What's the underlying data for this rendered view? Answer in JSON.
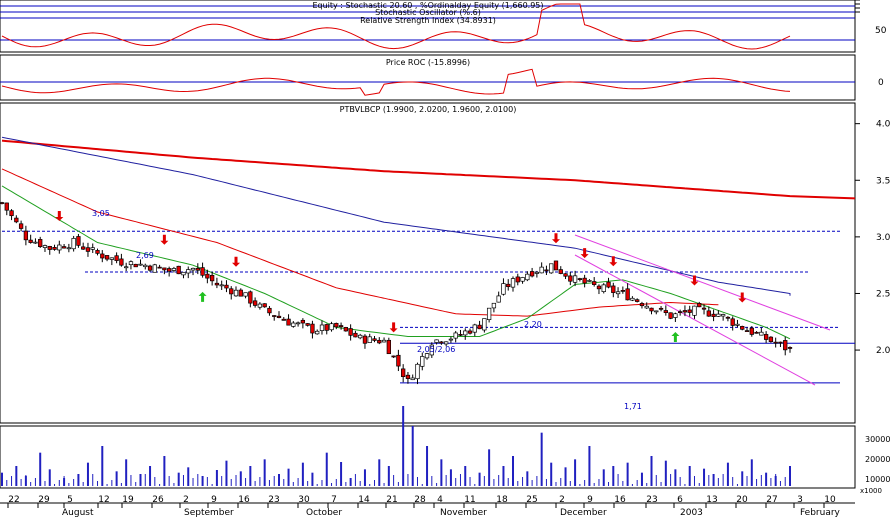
{
  "colors": {
    "background": "#ffffff",
    "frame": "#000000",
    "up_candle": "#ffffff",
    "down_candle": "#e00000",
    "osc_line": "#e00000",
    "ref_line": "#0000c0",
    "ma_red": "#e00000",
    "ma_blue": "#2020a0",
    "ma_green": "#20a020",
    "channel": "#e040e0",
    "level_dash": "#0000c0",
    "volume": "#2020c0",
    "buy_arrow": "#20c020",
    "sell_arrow": "#e00000"
  },
  "panels": {
    "oscillator_title": "Stochastic Oscillator (%.6)",
    "rsi_title": "Relative Strength Index (34.8931)",
    "oscillator_top_label": "Equity : Stochastic 20.60 , %Ordinalday Equity (1,660.95)",
    "oscillator_axis": [
      "50"
    ],
    "roc_title": "Price ROC (-15.8996)",
    "roc_axis": [
      "0"
    ],
    "price_title": "PTBVLBCP (1.9900, 2.0200, 1.9600, 2.0100)",
    "price_axis": [
      "4.0",
      "3.5",
      "3.0",
      "2.5",
      "2.0"
    ],
    "volume_axis": [
      "30000",
      "20000",
      "10000"
    ],
    "volume_unit": "x1000"
  },
  "annotations": {
    "levels": [
      "3,05",
      "2,69",
      "2,20",
      "2,05/2,06",
      "1,71"
    ]
  },
  "x_axis": {
    "days": [
      "22",
      "29",
      "5",
      "12",
      "19",
      "26",
      "2",
      "9",
      "16",
      "23",
      "30",
      "7",
      "14",
      "21",
      "28",
      "4",
      "11",
      "18",
      "25",
      "2",
      "9",
      "16",
      "23",
      "6",
      "13",
      "20",
      "27",
      "3",
      "10"
    ],
    "months": [
      "August",
      "September",
      "October",
      "November",
      "December",
      "2003",
      "February"
    ]
  },
  "chart_data": {
    "type": "candlestick",
    "title": "PTBVLBCP (1.9900, 2.0200, 1.9600, 2.0100)",
    "last_bar": {
      "open": 1.99,
      "high": 2.02,
      "low": 1.96,
      "close": 2.01
    },
    "ylim": [
      1.4,
      4.05
    ],
    "price_levels": [
      3.05,
      2.69,
      2.2,
      2.06,
      1.71
    ],
    "close_points": [
      [
        0,
        3.3
      ],
      [
        5,
        3.0
      ],
      [
        10,
        2.9
      ],
      [
        15,
        2.95
      ],
      [
        20,
        2.85
      ],
      [
        25,
        2.78
      ],
      [
        30,
        2.75
      ],
      [
        35,
        2.7
      ],
      [
        40,
        2.72
      ],
      [
        45,
        2.58
      ],
      [
        50,
        2.5
      ],
      [
        55,
        2.35
      ],
      [
        60,
        2.25
      ],
      [
        65,
        2.18
      ],
      [
        70,
        2.2
      ],
      [
        75,
        2.1
      ],
      [
        80,
        2.08
      ],
      [
        85,
        1.72
      ],
      [
        90,
        2.08
      ],
      [
        95,
        2.12
      ],
      [
        100,
        2.22
      ],
      [
        105,
        2.55
      ],
      [
        110,
        2.68
      ],
      [
        115,
        2.75
      ],
      [
        120,
        2.62
      ],
      [
        125,
        2.55
      ],
      [
        130,
        2.5
      ],
      [
        135,
        2.4
      ],
      [
        140,
        2.3
      ],
      [
        145,
        2.35
      ],
      [
        150,
        2.32
      ],
      [
        155,
        2.2
      ],
      [
        160,
        2.1
      ],
      [
        165,
        2.0
      ]
    ],
    "moving_averages": [
      {
        "name": "",
        "color": "#e00000",
        "points": [
          [
            0,
            3.85
          ],
          [
            40,
            3.7
          ],
          [
            80,
            3.58
          ],
          [
            120,
            3.5
          ],
          [
            165,
            3.36
          ]
        ]
      },
      {
        "name": "",
        "color": "#2020a0",
        "points": [
          [
            0,
            3.88
          ],
          [
            40,
            3.55
          ],
          [
            80,
            3.13
          ],
          [
            120,
            2.9
          ],
          [
            135,
            2.75
          ],
          [
            150,
            2.6
          ],
          [
            165,
            2.5
          ]
        ]
      },
      {
        "name": "",
        "color": "#e00000",
        "points": [
          [
            0,
            3.6
          ],
          [
            20,
            3.22
          ],
          [
            45,
            2.95
          ],
          [
            70,
            2.55
          ],
          [
            95,
            2.32
          ],
          [
            110,
            2.3
          ],
          [
            125,
            2.38
          ],
          [
            140,
            2.42
          ],
          [
            150,
            2.4
          ]
        ]
      },
      {
        "name": "",
        "color": "#20a020",
        "points": [
          [
            0,
            3.45
          ],
          [
            20,
            2.95
          ],
          [
            40,
            2.75
          ],
          [
            55,
            2.5
          ],
          [
            70,
            2.2
          ],
          [
            85,
            2.12
          ],
          [
            100,
            2.12
          ],
          [
            110,
            2.28
          ],
          [
            120,
            2.58
          ],
          [
            130,
            2.62
          ],
          [
            140,
            2.5
          ],
          [
            150,
            2.35
          ],
          [
            160,
            2.2
          ],
          [
            165,
            2.1
          ]
        ]
      }
    ],
    "volume": [
      20,
      30,
      15,
      50,
      25,
      12,
      18,
      35,
      60,
      22,
      40,
      18,
      30,
      45,
      20,
      28,
      15,
      24,
      38,
      22,
      30,
      40,
      18,
      26,
      35,
      20,
      50,
      36,
      12,
      25,
      40,
      30,
      120,
      90,
      60,
      40,
      25,
      30,
      20,
      55,
      30,
      45,
      22,
      80,
      35,
      28,
      40,
      60,
      25,
      30,
      35,
      20,
      45,
      38,
      25,
      30,
      26,
      18,
      35,
      22,
      40,
      20,
      15,
      30
    ]
  }
}
